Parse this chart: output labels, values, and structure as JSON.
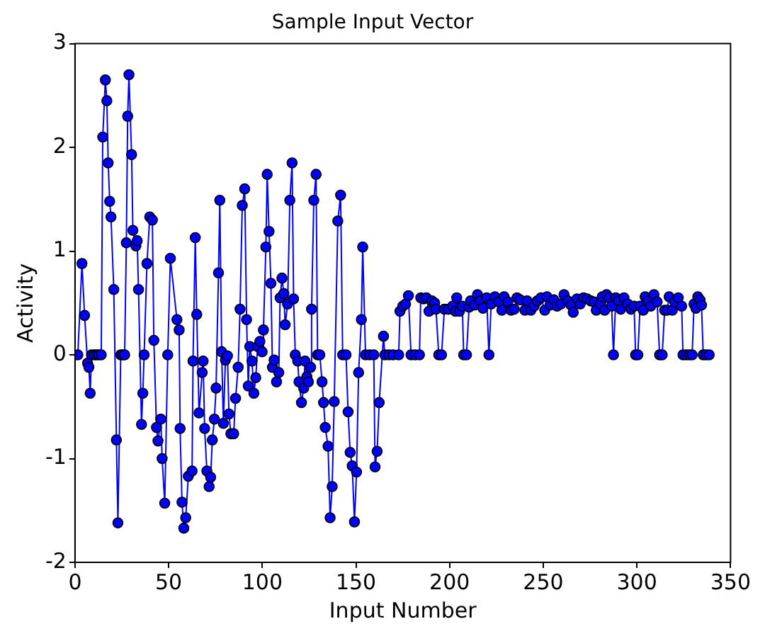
{
  "chart_data": {
    "type": "line",
    "title": "Sample Input Vector",
    "xlabel": "Input Number",
    "ylabel": "Activity",
    "x": [
      1.5,
      3.7,
      5.1,
      6.7,
      7.4,
      8.1,
      8.8,
      10.3,
      11.5,
      12.7,
      14.0,
      14.8,
      16.2,
      17.0,
      17.7,
      18.5,
      19.2,
      20.7,
      22.1,
      22.9,
      24.4,
      25.5,
      26.5,
      27.4,
      28.1,
      28.8,
      30.2,
      30.9,
      32.5,
      33.2,
      33.9,
      35.5,
      36.2,
      36.9,
      38.4,
      39.9,
      41.3,
      42.1,
      43.5,
      44.3,
      45.8,
      46.5,
      47.9,
      49.5,
      50.9,
      54.4,
      55.6,
      56.1,
      57.1,
      58.1,
      59.1,
      60.5,
      62.5,
      63.0,
      64.2,
      65.0,
      66.2,
      67.9,
      68.4,
      69.2,
      70.4,
      71.6,
      72.4,
      73.3,
      74.4,
      75.3,
      76.6,
      77.3,
      78.3,
      79.2,
      80.3,
      81.4,
      82.2,
      83.2,
      84.7,
      85.7,
      87.1,
      88.1,
      89.3,
      90.6,
      91.6,
      92.5,
      93.3,
      94.5,
      95.5,
      96.5,
      97.5,
      98.7,
      99.9,
      100.6,
      101.9,
      102.6,
      103.6,
      104.6,
      105.4,
      106.3,
      107.6,
      108.8,
      109.5,
      110.5,
      111.5,
      112.2,
      113.5,
      114.7,
      115.9,
      116.7,
      117.6,
      118.9,
      119.6,
      120.9,
      122.1,
      122.8,
      123.8,
      124.6,
      125.8,
      126.3,
      127.5,
      128.7,
      129.5,
      130.7,
      131.9,
      132.7,
      133.6,
      135.1,
      136.2,
      137.3,
      138.4,
      140.3,
      141.8,
      142.9,
      144.7,
      145.8,
      146.9,
      148.0,
      149.2,
      150.3,
      151.4,
      152.9,
      153.6,
      155.1,
      157.3,
      159.5,
      160.2,
      161.3,
      162.4,
      164.7,
      165.4,
      167.6,
      169.8,
      172.8,
      173.5,
      175.0,
      176.5,
      178.0,
      179.4,
      181.6,
      183.9,
      184.6,
      186.1,
      187.6,
      189.0,
      190.5,
      192.0,
      192.7,
      194.2,
      195.7,
      197.2,
      199.4,
      201.6,
      203.1,
      203.8,
      205.3,
      206.8,
      207.5,
      209.0,
      210.4,
      211.2,
      213.4,
      214.9,
      216.3,
      217.8,
      219.8,
      221.0,
      222.2,
      224.2,
      226.2,
      227.9,
      229.1,
      231.1,
      232.8,
      234.5,
      236.0,
      237.7,
      240.2,
      241.4,
      243.4,
      245.1,
      246.8,
      248.8,
      250.8,
      252.0,
      253.7,
      255.7,
      257.4,
      259.4,
      261.1,
      263.1,
      264.8,
      266.0,
      268.0,
      269.7,
      271.5,
      273.4,
      275.4,
      277.1,
      278.3,
      280.3,
      281.5,
      282.8,
      283.8,
      285.2,
      286.5,
      287.5,
      288.7,
      290.2,
      291.4,
      293.1,
      295.1,
      296.8,
      298.5,
      299.3,
      300.5,
      301.7,
      303.4,
      304.4,
      305.9,
      307.4,
      309.1,
      310.8,
      312.1,
      313.5,
      314.8,
      316.2,
      317.2,
      318.9,
      320.2,
      322.1,
      323.9,
      324.6,
      326.3,
      328.1,
      329.5,
      330.5,
      331.5,
      332.5,
      333.7,
      334.5,
      335.4,
      336.9,
      338.6
    ],
    "series": [
      {
        "color": "#0000ff",
        "values": [
          0,
          0.88,
          0.38,
          -0.08,
          -0.12,
          -0.37,
          0,
          0,
          0,
          0,
          0,
          2.1,
          2.65,
          2.45,
          1.85,
          1.48,
          1.33,
          0.63,
          -0.82,
          -1.62,
          0,
          0,
          0,
          1.08,
          2.3,
          2.7,
          1.93,
          1.2,
          1.05,
          1.1,
          0.63,
          -0.67,
          -0.37,
          0,
          0.88,
          1.33,
          1.3,
          0.14,
          -0.7,
          -0.83,
          -0.62,
          -1.0,
          -1.43,
          0,
          0.93,
          0.34,
          0.24,
          -0.71,
          -1.42,
          -1.67,
          -1.57,
          -1.17,
          -1.12,
          -0.06,
          1.13,
          0.39,
          -0.56,
          -0.17,
          -0.06,
          -0.71,
          -1.12,
          -1.27,
          -1.18,
          -0.82,
          -0.62,
          -0.32,
          0.79,
          1.49,
          0.03,
          -0.66,
          -0.05,
          -0.01,
          -0.57,
          -0.76,
          -0.76,
          -0.42,
          -0.12,
          0.44,
          1.44,
          1.6,
          0.34,
          -0.3,
          0.08,
          -0.06,
          -0.37,
          -0.22,
          0.08,
          0.13,
          0.03,
          0.24,
          1.04,
          1.74,
          1.19,
          0.69,
          -0.12,
          -0.05,
          -0.26,
          -0.17,
          0.55,
          0.74,
          0.59,
          0.29,
          0.49,
          1.49,
          1.85,
          0.54,
          0,
          -0.06,
          -0.26,
          -0.46,
          -0.32,
          -0.06,
          -0.21,
          -0.26,
          -0.12,
          0.44,
          1.49,
          1.74,
          0,
          0,
          -0.26,
          -0.46,
          -0.7,
          -0.88,
          -1.57,
          -1.27,
          -0.45,
          1.29,
          1.54,
          0,
          0,
          -0.55,
          -0.94,
          -1.07,
          -1.61,
          -1.13,
          -0.17,
          0.34,
          1.04,
          0,
          0,
          0,
          -1.08,
          -0.93,
          -0.46,
          0.18,
          0,
          0,
          0,
          0,
          0.42,
          0.47,
          0.49,
          0.57,
          0,
          0,
          0,
          0.55,
          0.54,
          0.55,
          0.42,
          0.52,
          0.5,
          0.44,
          0,
          0,
          0.44,
          0.44,
          0.47,
          0.42,
          0.55,
          0.42,
          0.47,
          0,
          0,
          0.46,
          0.52,
          0.48,
          0.58,
          0.52,
          0.45,
          0.55,
          0,
          0.49,
          0.56,
          0.51,
          0.43,
          0.56,
          0.51,
          0.43,
          0.44,
          0.55,
          0.53,
          0.43,
          0.52,
          0.43,
          0.47,
          0.52,
          0.55,
          0.43,
          0.56,
          0.48,
          0.53,
          0.47,
          0.49,
          0.58,
          0.52,
          0.48,
          0.41,
          0.54,
          0.49,
          0.55,
          0.54,
          0.52,
          0.51,
          0.43,
          0.49,
          0.56,
          0.43,
          0.58,
          0.55,
          0.47,
          0,
          0.55,
          0.52,
          0.44,
          0.55,
          0.49,
          0.44,
          0.47,
          0,
          0,
          0.47,
          0.43,
          0.56,
          0.52,
          0.47,
          0.58,
          0.51,
          0,
          0,
          0.43,
          0.43,
          0.56,
          0.43,
          0.51,
          0.55,
          0.47,
          0,
          0,
          0,
          0,
          0.49,
          0.45,
          0.56,
          0.53,
          0.48,
          0,
          0,
          0
        ]
      }
    ],
    "xlim": [
      0,
      350
    ],
    "xticks": [
      0,
      50,
      100,
      150,
      200,
      250,
      300,
      350
    ],
    "ylim": [
      -2,
      3
    ],
    "yticks": [
      -2,
      -1,
      0,
      1,
      2,
      3
    ],
    "grid": false,
    "legend": false,
    "marker": "circle",
    "line_style": "solid"
  }
}
